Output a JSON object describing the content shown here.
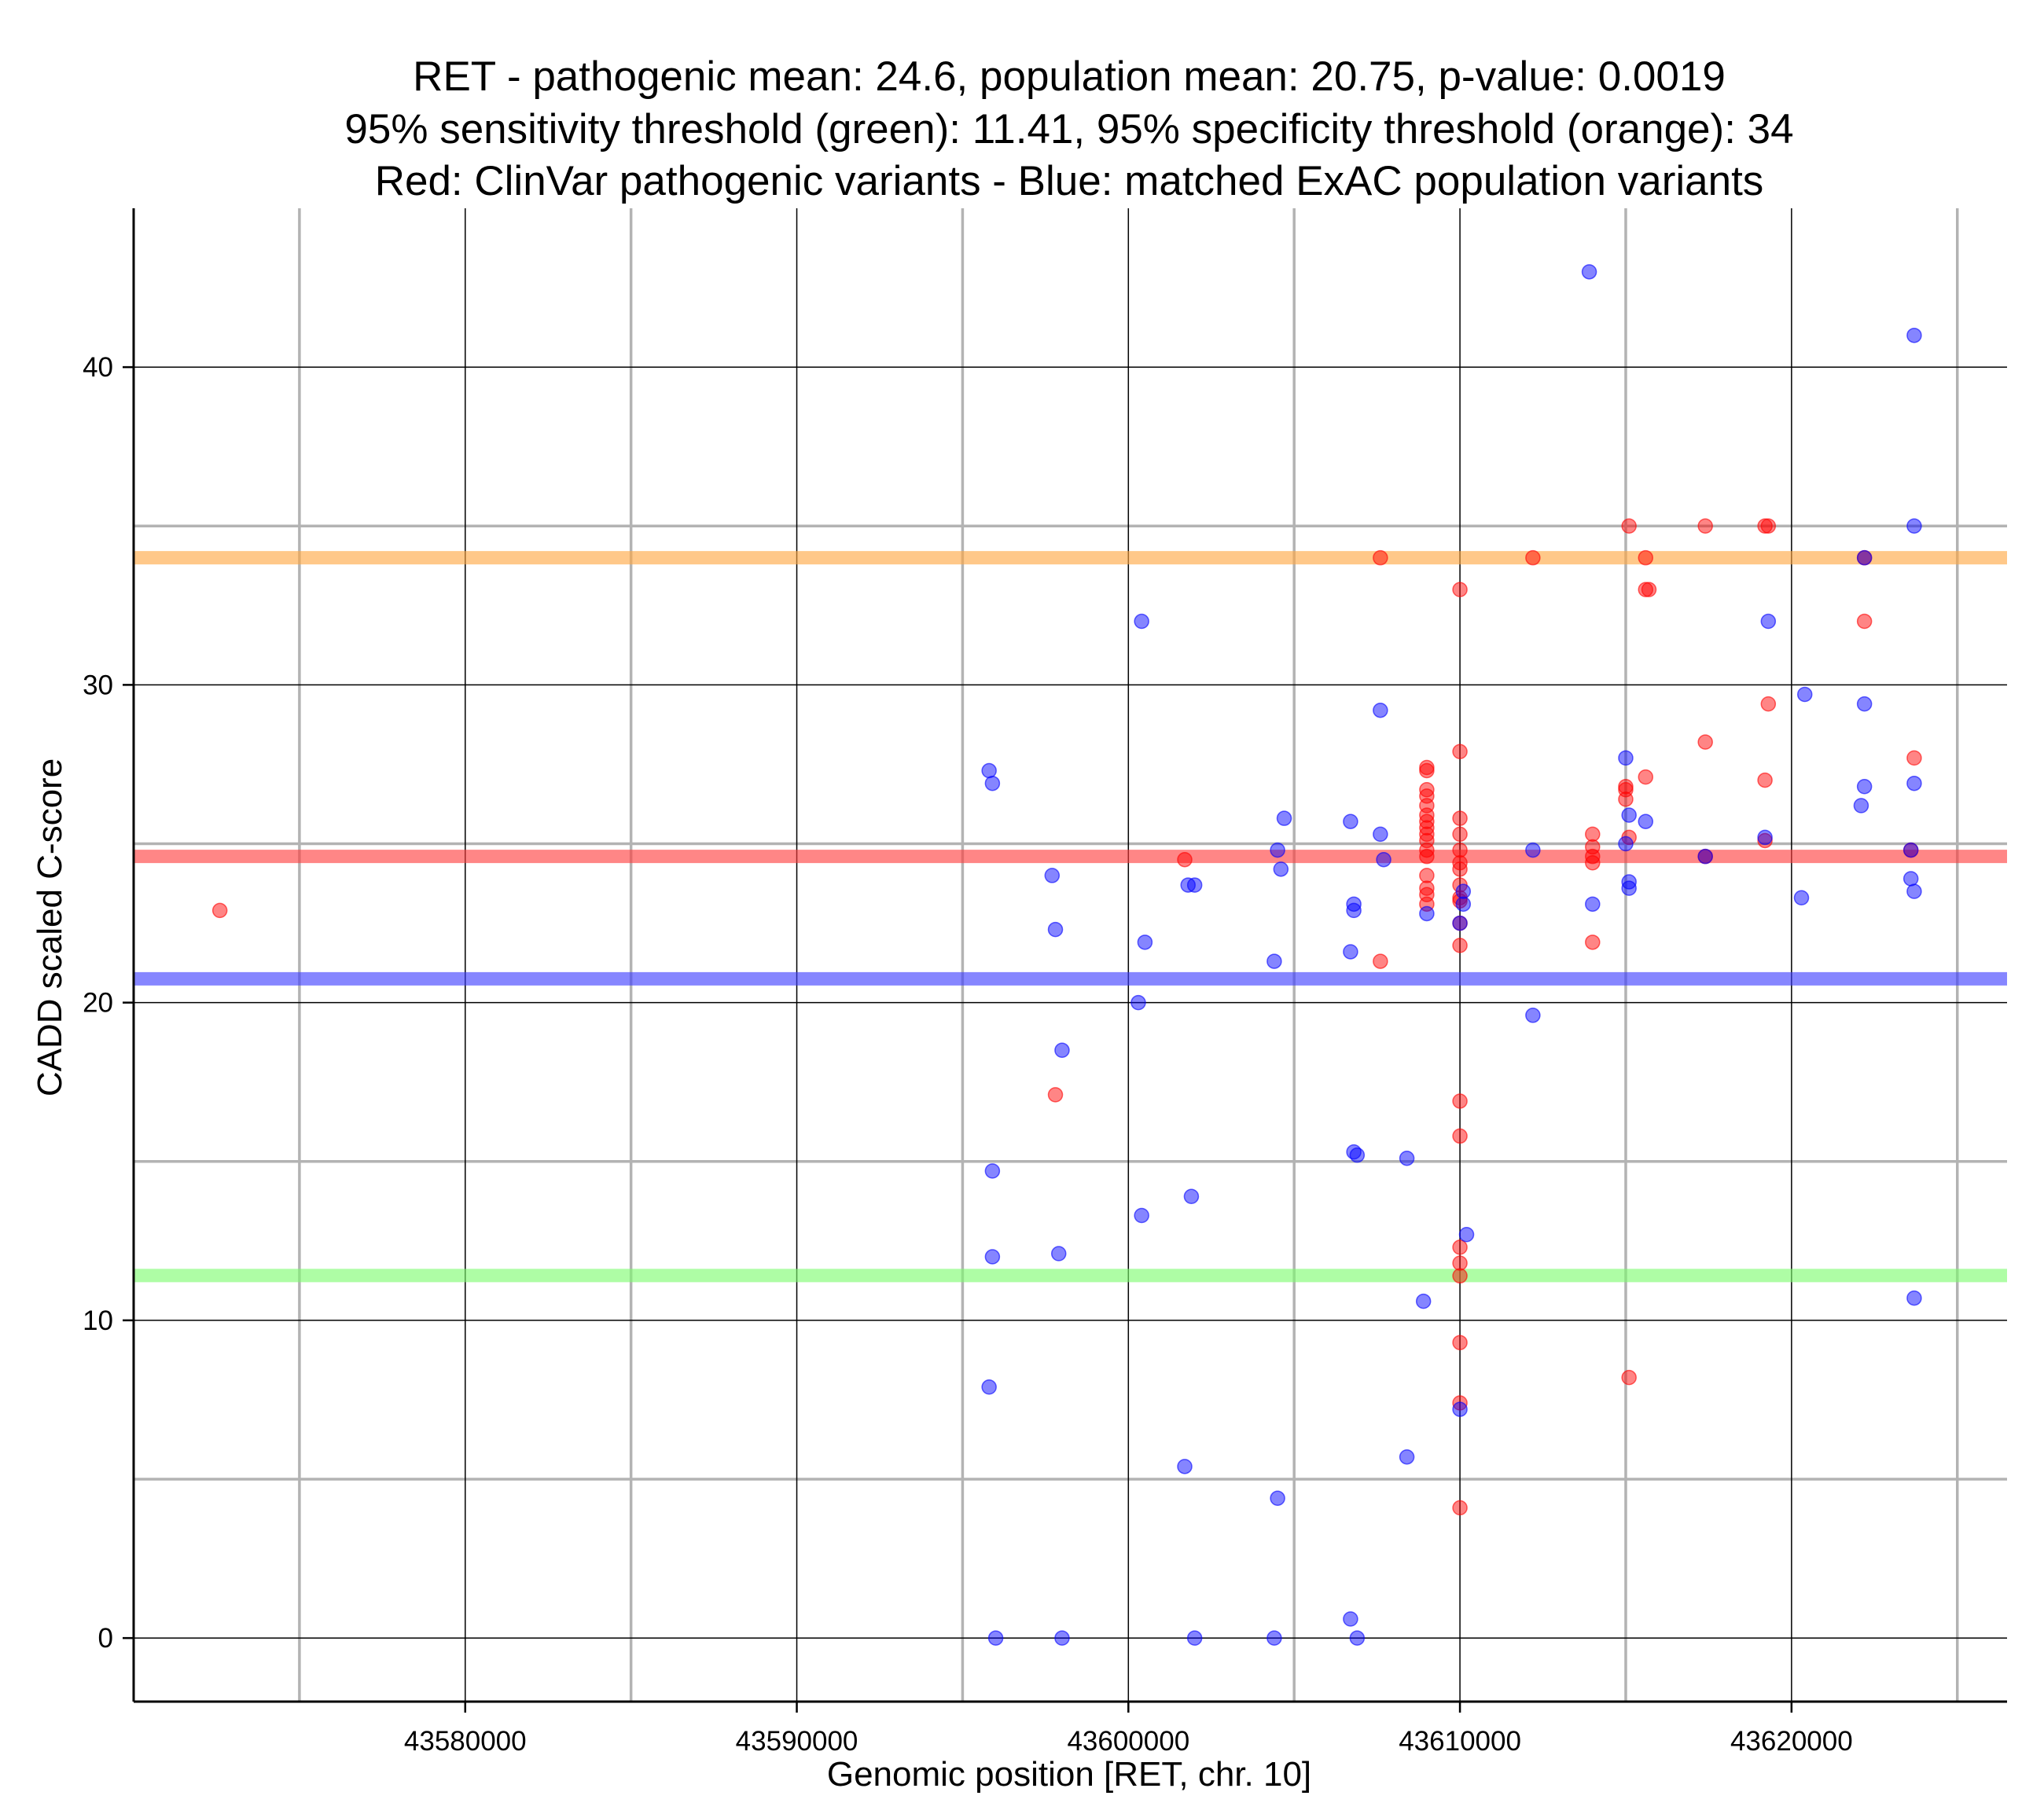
{
  "chart_data": {
    "type": "scatter",
    "title_lines": [
      "RET - pathogenic mean: 24.6, population mean: 20.75, p-value: 0.0019",
      "95% sensitivity threshold (green): 11.41, 95% specificity threshold (orange): 34",
      "Red: ClinVar pathogenic variants - Blue: matched ExAC population variants"
    ],
    "xlabel": "Genomic position [RET, chr. 10]",
    "ylabel": "CADD scaled C-score",
    "xlim": [
      43570000,
      43626500
    ],
    "ylim": [
      -2,
      45
    ],
    "x_ticks": [
      43580000,
      43590000,
      43600000,
      43610000,
      43620000
    ],
    "y_ticks": [
      0,
      10,
      20,
      30,
      40
    ],
    "x_minor_grid": [
      43575000,
      43585000,
      43595000,
      43605000,
      43615000,
      43625000
    ],
    "y_minor_grid": [
      5,
      15,
      25,
      35
    ],
    "grid": true,
    "colors": {
      "pathogenic": "#ff0000",
      "population": "#0000ff",
      "sensitivity": "#7cfc6e",
      "specificity": "#ffa640",
      "major_grid": "#000000",
      "minor_grid": "#b3b3b3"
    },
    "reference_lines": [
      {
        "name": "specificity-threshold",
        "value": 34,
        "color": "#ffa640"
      },
      {
        "name": "pathogenic-mean",
        "value": 24.6,
        "color": "#ff3b3b"
      },
      {
        "name": "population-mean",
        "value": 20.75,
        "color": "#3b3bff"
      },
      {
        "name": "sensitivity-threshold",
        "value": 11.41,
        "color": "#7cfc6e"
      }
    ],
    "series": [
      {
        "name": "ClinVar pathogenic variants",
        "color": "#ff0000",
        "points": [
          [
            43572600,
            22.9
          ],
          [
            43597800,
            17.1
          ],
          [
            43601700,
            24.5
          ],
          [
            43607600,
            34
          ],
          [
            43607600,
            21.3
          ],
          [
            43609000,
            27.4
          ],
          [
            43609000,
            27.3
          ],
          [
            43609000,
            26.7
          ],
          [
            43609000,
            26.5
          ],
          [
            43609000,
            26.2
          ],
          [
            43609000,
            25.9
          ],
          [
            43609000,
            25.7
          ],
          [
            43609000,
            25.5
          ],
          [
            43609000,
            25.3
          ],
          [
            43609000,
            25.1
          ],
          [
            43609000,
            24.8
          ],
          [
            43609000,
            24.6
          ],
          [
            43609000,
            24.0
          ],
          [
            43609000,
            23.6
          ],
          [
            43609000,
            23.4
          ],
          [
            43609000,
            23.1
          ],
          [
            43610000,
            33.0
          ],
          [
            43610000,
            27.9
          ],
          [
            43610000,
            25.8
          ],
          [
            43610000,
            25.3
          ],
          [
            43610000,
            24.8
          ],
          [
            43610000,
            24.4
          ],
          [
            43610000,
            24.2
          ],
          [
            43610000,
            23.7
          ],
          [
            43610000,
            23.3
          ],
          [
            43610000,
            23.2
          ],
          [
            43610000,
            22.5
          ],
          [
            43610000,
            21.8
          ],
          [
            43610000,
            16.9
          ],
          [
            43610000,
            15.8
          ],
          [
            43610000,
            12.3
          ],
          [
            43610000,
            11.8
          ],
          [
            43610000,
            11.4
          ],
          [
            43610000,
            9.3
          ],
          [
            43610000,
            7.4
          ],
          [
            43610000,
            4.1
          ],
          [
            43612200,
            34
          ],
          [
            43614000,
            25.3
          ],
          [
            43614000,
            24.9
          ],
          [
            43614000,
            24.6
          ],
          [
            43614000,
            24.4
          ],
          [
            43614000,
            21.9
          ],
          [
            43615100,
            35
          ],
          [
            43615000,
            26.8
          ],
          [
            43615000,
            26.7
          ],
          [
            43615000,
            26.4
          ],
          [
            43615100,
            25.2
          ],
          [
            43615100,
            8.2
          ],
          [
            43615600,
            34
          ],
          [
            43615600,
            33
          ],
          [
            43615700,
            33
          ],
          [
            43615600,
            27.1
          ],
          [
            43617400,
            35
          ],
          [
            43617400,
            28.2
          ],
          [
            43617400,
            24.6
          ],
          [
            43619200,
            35
          ],
          [
            43619300,
            35
          ],
          [
            43619300,
            29.4
          ],
          [
            43619200,
            27.0
          ],
          [
            43619200,
            25.1
          ],
          [
            43622200,
            34
          ],
          [
            43622200,
            32
          ],
          [
            43623700,
            27.7
          ],
          [
            43623600,
            24.8
          ]
        ]
      },
      {
        "name": "matched ExAC population variants",
        "color": "#0000ff",
        "points": [
          [
            43595800,
            27.3
          ],
          [
            43595900,
            26.9
          ],
          [
            43595900,
            14.7
          ],
          [
            43595900,
            12.0
          ],
          [
            43595800,
            7.9
          ],
          [
            43596000,
            0
          ],
          [
            43597700,
            24.0
          ],
          [
            43597800,
            22.3
          ],
          [
            43598000,
            18.5
          ],
          [
            43597900,
            12.1
          ],
          [
            43598000,
            0
          ],
          [
            43600400,
            32.0
          ],
          [
            43600500,
            21.9
          ],
          [
            43600300,
            20.0
          ],
          [
            43600400,
            13.3
          ],
          [
            43601800,
            23.7
          ],
          [
            43602000,
            23.7
          ],
          [
            43601900,
            13.9
          ],
          [
            43601700,
            5.4
          ],
          [
            43602000,
            0
          ],
          [
            43604700,
            25.8
          ],
          [
            43604500,
            24.8
          ],
          [
            43604600,
            24.2
          ],
          [
            43604400,
            21.3
          ],
          [
            43604500,
            4.4
          ],
          [
            43604400,
            0
          ],
          [
            43606700,
            25.7
          ],
          [
            43606800,
            23.1
          ],
          [
            43606800,
            22.9
          ],
          [
            43606700,
            21.6
          ],
          [
            43606800,
            15.3
          ],
          [
            43606900,
            15.2
          ],
          [
            43606700,
            0.6
          ],
          [
            43606900,
            0
          ],
          [
            43607600,
            29.2
          ],
          [
            43607600,
            25.3
          ],
          [
            43607700,
            24.5
          ],
          [
            43608400,
            15.1
          ],
          [
            43608400,
            5.7
          ],
          [
            43609000,
            22.8
          ],
          [
            43608900,
            10.6
          ],
          [
            43610100,
            23.5
          ],
          [
            43610100,
            23.1
          ],
          [
            43610000,
            22.5
          ],
          [
            43610200,
            12.7
          ],
          [
            43610000,
            7.2
          ],
          [
            43612200,
            24.8
          ],
          [
            43612200,
            19.6
          ],
          [
            43613900,
            43.0
          ],
          [
            43614000,
            23.1
          ],
          [
            43615000,
            27.7
          ],
          [
            43615100,
            25.9
          ],
          [
            43615000,
            25.0
          ],
          [
            43615100,
            23.8
          ],
          [
            43615100,
            23.6
          ],
          [
            43615600,
            25.7
          ],
          [
            43617400,
            24.6
          ],
          [
            43619300,
            32.0
          ],
          [
            43619200,
            25.2
          ],
          [
            43620400,
            29.7
          ],
          [
            43620300,
            23.3
          ],
          [
            43622200,
            34.0
          ],
          [
            43622200,
            29.4
          ],
          [
            43622200,
            26.8
          ],
          [
            43622100,
            26.2
          ],
          [
            43623700,
            41.0
          ],
          [
            43623700,
            35.0
          ],
          [
            43623700,
            26.9
          ],
          [
            43623600,
            24.8
          ],
          [
            43623600,
            23.9
          ],
          [
            43623700,
            23.5
          ],
          [
            43623700,
            10.7
          ]
        ]
      }
    ]
  }
}
